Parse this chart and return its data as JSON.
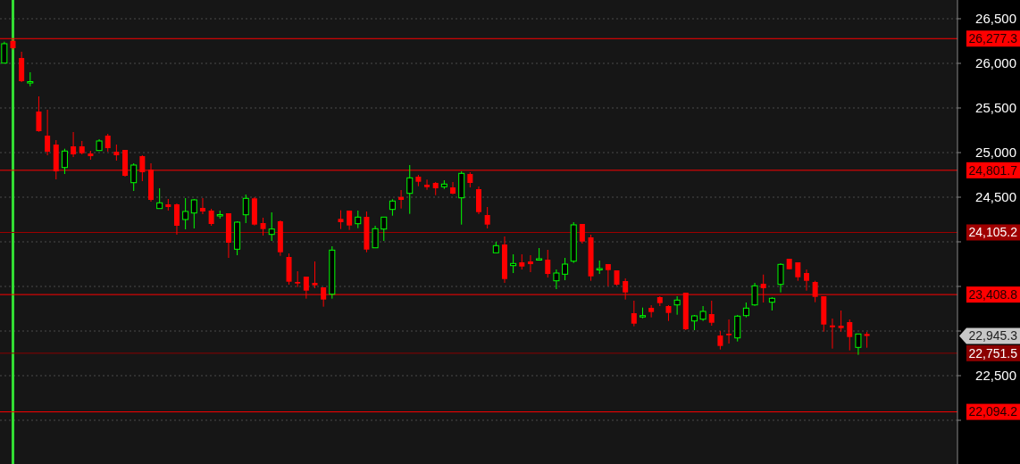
{
  "chart_data": {
    "type": "candlestick",
    "categories": [
      null,
      null,
      null,
      null,
      null,
      null,
      null,
      null,
      null,
      null,
      null,
      null,
      null,
      null,
      null,
      null,
      null,
      null,
      null,
      null,
      null,
      null,
      null,
      null,
      null,
      null,
      null,
      null,
      null,
      null,
      null,
      null,
      null,
      null,
      null,
      null,
      null,
      null,
      null,
      null,
      null,
      null,
      null,
      null,
      null,
      null,
      null,
      null,
      null,
      null,
      null,
      null,
      null,
      null,
      null,
      null,
      null,
      null,
      null,
      null,
      null,
      null,
      null,
      null,
      null,
      null,
      null,
      null,
      null,
      null,
      null,
      null,
      null,
      null,
      null,
      null,
      null,
      null,
      null,
      null,
      null,
      null,
      null,
      null,
      null,
      null,
      null,
      null,
      null,
      null,
      null,
      null,
      null,
      null,
      null,
      null,
      null,
      null,
      null,
      null,
      null,
      null,
      null,
      null,
      null,
      null,
      null,
      null,
      null,
      null,
      null
    ],
    "ohlc": [
      [
        26003,
        26243,
        26003,
        26220
      ],
      [
        26253,
        26277,
        26153,
        26170
      ],
      [
        26060,
        26130,
        25790,
        25800
      ],
      [
        25790,
        25900,
        25743,
        25795
      ],
      [
        25460,
        25630,
        25233,
        25240
      ],
      [
        25190,
        25480,
        24970,
        25010
      ],
      [
        25090,
        25140,
        24700,
        24790
      ],
      [
        24833,
        25043,
        24760,
        25017
      ],
      [
        25070,
        25230,
        24950,
        24980
      ],
      [
        25070,
        25130,
        24980,
        24993
      ],
      [
        24990,
        25020,
        24920,
        24960
      ],
      [
        25023,
        25150,
        25023,
        25130
      ],
      [
        25190,
        25210,
        25010,
        25050
      ],
      [
        25010,
        25090,
        24910,
        24970
      ],
      [
        25030,
        25030,
        24730,
        24740
      ],
      [
        24663,
        24880,
        24570,
        24860
      ],
      [
        24960,
        24970,
        24680,
        24780
      ],
      [
        24810,
        24880,
        24450,
        24470
      ],
      [
        24373,
        24600,
        24373,
        24437
      ],
      [
        24420,
        24480,
        24350,
        24390
      ],
      [
        24420,
        24430,
        24080,
        24180
      ],
      [
        24250,
        24490,
        24140,
        24340
      ],
      [
        24323,
        24480,
        24150,
        24470
      ],
      [
        24380,
        24490,
        24310,
        24340
      ],
      [
        24350,
        24370,
        24180,
        24200
      ],
      [
        24300,
        24350,
        24260,
        24305
      ],
      [
        24320,
        24320,
        23820,
        23990
      ],
      [
        23917,
        24230,
        23850,
        24220
      ],
      [
        24303,
        24530,
        24210,
        24487
      ],
      [
        24487,
        24500,
        24183,
        24193
      ],
      [
        24210,
        24270,
        24070,
        24143
      ],
      [
        24083,
        24330,
        24010,
        24143
      ],
      [
        24230,
        24240,
        23843,
        23883
      ],
      [
        23830,
        23870,
        23520,
        23553
      ],
      [
        23550,
        23670,
        23493,
        23533
      ],
      [
        23610,
        23610,
        23363,
        23453
      ],
      [
        23540,
        23780,
        23480,
        23513
      ],
      [
        23490,
        23490,
        23273,
        23353
      ],
      [
        23413,
        23950,
        23363,
        23907
      ],
      [
        24257,
        24353,
        24143,
        24220
      ],
      [
        24350,
        24350,
        24133,
        24183
      ],
      [
        24203,
        24350,
        24153,
        24277
      ],
      [
        24280,
        24340,
        23883,
        23913
      ],
      [
        23933,
        24180,
        23933,
        24147
      ],
      [
        24143,
        24277,
        24010,
        24277
      ],
      [
        24363,
        24477,
        24293,
        24457
      ],
      [
        24503,
        24580,
        24373,
        24470
      ],
      [
        24543,
        24860,
        24313,
        24717
      ],
      [
        24730,
        24750,
        24623,
        24673
      ],
      [
        24640,
        24697,
        24583,
        24613
      ],
      [
        24660,
        24670,
        24523,
        24600
      ],
      [
        24617,
        24690,
        24593,
        24647
      ],
      [
        24610,
        24670,
        24533,
        24540
      ],
      [
        24493,
        24790,
        24193,
        24767
      ],
      [
        24760,
        24780,
        24610,
        24660
      ],
      [
        24590,
        24620,
        24310,
        24333
      ],
      [
        24300,
        24390,
        24150,
        24193
      ],
      [
        23877,
        24000,
        23877,
        23957
      ],
      [
        23970,
        24060,
        23540,
        23583
      ],
      [
        23733,
        23860,
        23650,
        23757
      ],
      [
        23770,
        23860,
        23690,
        23723
      ],
      [
        23780,
        23850,
        23660,
        23750
      ],
      [
        23805,
        23930,
        23800,
        23810
      ],
      [
        23800,
        23910,
        23600,
        23640
      ],
      [
        23563,
        23690,
        23470,
        23650
      ],
      [
        23637,
        23820,
        23570,
        23750
      ],
      [
        23783,
        24220,
        23763,
        24190
      ],
      [
        24200,
        24200,
        23980,
        24003
      ],
      [
        24050,
        24080,
        23563,
        23613
      ],
      [
        23695,
        23790,
        23640,
        23700
      ],
      [
        23750,
        23750,
        23503,
        23683
      ],
      [
        23680,
        23680,
        23510,
        23520
      ],
      [
        23560,
        23590,
        23353,
        23433
      ],
      [
        23200,
        23340,
        23053,
        23083
      ],
      [
        23170,
        23263,
        23143,
        23173
      ],
      [
        23260,
        23290,
        23153,
        23213
      ],
      [
        23380,
        23390,
        23280,
        23313
      ],
      [
        23280,
        23290,
        23113,
        23203
      ],
      [
        23293,
        23390,
        23183,
        23347
      ],
      [
        23430,
        23430,
        23010,
        23020
      ],
      [
        23113,
        23180,
        23010,
        23170
      ],
      [
        23133,
        23280,
        23113,
        23220
      ],
      [
        23190,
        23340,
        23060,
        23093
      ],
      [
        22950,
        23000,
        22793,
        22833
      ],
      [
        22970,
        23130,
        22860,
        22953
      ],
      [
        22923,
        23180,
        22883,
        23167
      ],
      [
        23173,
        23320,
        23153,
        23257
      ],
      [
        23293,
        23540,
        23283,
        23507
      ],
      [
        23530,
        23633,
        23320,
        23480
      ],
      [
        23323,
        23380,
        23230,
        23367
      ],
      [
        23523,
        23760,
        23433,
        23747
      ],
      [
        23810,
        23810,
        23693,
        23693
      ],
      [
        23770,
        23770,
        23563,
        23603
      ],
      [
        23650,
        23690,
        23453,
        23563
      ],
      [
        23550,
        23563,
        23323,
        23383
      ],
      [
        23390,
        23390,
        22993,
        23073
      ],
      [
        23063,
        23140,
        22803,
        23043
      ],
      [
        23060,
        23230,
        22993,
        23033
      ],
      [
        23100,
        23130,
        22783,
        22933
      ],
      [
        22817,
        22967,
        22733,
        22967
      ],
      [
        22967,
        22990,
        22813,
        22945
      ],
      null,
      null,
      null,
      null,
      null,
      null,
      null,
      null,
      null,
      null
    ],
    "colors": [
      "#00ff00",
      "#ff0000",
      "#ff0000",
      "#00ff00",
      "#ff0000",
      "#ff0000",
      "#ff0000",
      "#00ff00",
      "#ff0000",
      "#ff0000",
      "#ff0000",
      "#00ff00",
      "#ff0000",
      "#ff0000",
      "#ff0000",
      "#00ff00",
      "#ff0000",
      "#ff0000",
      "#00ff00",
      "#ff0000",
      "#ff0000",
      "#00ff00",
      "#00ff00",
      "#ff0000",
      "#ff0000",
      "#00ff00",
      "#ff0000",
      "#00ff00",
      "#00ff00",
      "#ff0000",
      "#ff0000",
      "#00ff00",
      "#ff0000",
      "#ff0000",
      "#ff0000",
      "#ff0000",
      "#ff0000",
      "#ff0000",
      "#00ff00",
      "#ff0000",
      "#ff0000",
      "#00ff00",
      "#ff0000",
      "#00ff00",
      "#00ff00",
      "#00ff00",
      "#ff0000",
      "#00ff00",
      "#ff0000",
      "#ff0000",
      "#ff0000",
      "#00ff00",
      "#ff0000",
      "#00ff00",
      "#ff0000",
      "#ff0000",
      "#ff0000",
      "#00ff00",
      "#ff0000",
      "#00ff00",
      "#ff0000",
      "#ff0000",
      "#00ff00",
      "#ff0000",
      "#00ff00",
      "#00ff00",
      "#00ff00",
      "#ff0000",
      "#ff0000",
      "#00ff00",
      "#ff0000",
      "#ff0000",
      "#ff0000",
      "#ff0000",
      "#00ff00",
      "#ff0000",
      "#ff0000",
      "#ff0000",
      "#00ff00",
      "#ff0000",
      "#00ff00",
      "#00ff00",
      "#ff0000",
      "#ff0000",
      "#ff0000",
      "#00ff00",
      "#00ff00",
      "#00ff00",
      "#ff0000",
      "#00ff00",
      "#00ff00",
      "#ff0000",
      "#ff0000",
      "#ff0000",
      "#ff0000",
      "#ff0000",
      "#ff0000",
      "#ff0000",
      "#ff0000",
      "#00ff00",
      "#ff0000",
      null,
      null,
      null,
      null,
      null,
      null,
      null,
      null,
      null,
      null
    ],
    "ylim": [
      21510,
      26710
    ],
    "yticks": [
      {
        "value": 22000,
        "label": null
      },
      {
        "value": 22500,
        "label": "22,500"
      },
      {
        "value": 23000,
        "label": null
      },
      {
        "value": 23500,
        "label": null
      },
      {
        "value": 24000,
        "label": null
      },
      {
        "value": 24500,
        "label": "24,500"
      },
      {
        "value": 25000,
        "label": "25,000"
      },
      {
        "value": 25500,
        "label": "25,500"
      },
      {
        "value": 26000,
        "label": "26,000"
      },
      {
        "value": 26500,
        "label": "26,500"
      }
    ],
    "grid": "y",
    "tick_labels": "y",
    "ref_lines": [
      {
        "axis": "y",
        "value": 26277.3,
        "label": "26,277.3",
        "color": "#ff0000"
      },
      {
        "axis": "y",
        "value": 24801.7,
        "label": "24,801.7",
        "color": "#ff0000"
      },
      {
        "axis": "y",
        "value": 24105.2,
        "label": "24,105.2",
        "color": "#a00000"
      },
      {
        "axis": "y",
        "value": 23408.8,
        "label": "23,408.8",
        "color": "#ff0000"
      },
      {
        "axis": "y",
        "value": 22751.5,
        "label": "22,751.5",
        "color": "#8b0000"
      },
      {
        "axis": "y",
        "value": 22094.2,
        "label": "22,094.2",
        "color": "#ff0000"
      }
    ],
    "annotations": [
      "22,945.3"
    ]
  }
}
